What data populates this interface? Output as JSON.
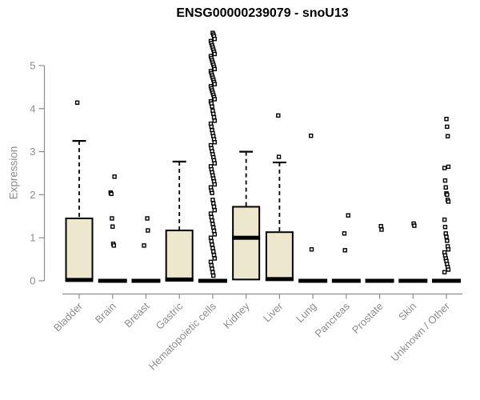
{
  "chart_data": {
    "type": "boxplot",
    "title": "ENSG00000239079 - snoU13",
    "ylabel": "Expression",
    "yticks": [
      0,
      1,
      2,
      3,
      4,
      5
    ],
    "ylim": [
      -0.15,
      5.9
    ],
    "grid": false,
    "legend": false,
    "box_fill": "#ede8cd",
    "box_stroke": "#000000",
    "axis_color": "#8c8c8c",
    "categories": [
      "Bladder",
      "Brain",
      "Breast",
      "Gastric",
      "Hematopoietic cells",
      "Kidney",
      "Liver",
      "Lung",
      "Pancreas",
      "Prostate",
      "Skin",
      "Unknown / Other"
    ],
    "series": [
      {
        "name": "Bladder",
        "q1": 0,
        "median": 0.02,
        "q3": 1.45,
        "whisker_low": 0,
        "whisker_high": 3.25,
        "outliers": [
          4.14
        ]
      },
      {
        "name": "Brain",
        "q1": 0,
        "median": 0,
        "q3": 0,
        "whisker_low": 0,
        "whisker_high": 0,
        "outliers": [
          2.42,
          2.05,
          2.02,
          1.45,
          1.26,
          0.86,
          0.82
        ]
      },
      {
        "name": "Breast",
        "q1": 0,
        "median": 0,
        "q3": 0,
        "whisker_low": 0,
        "whisker_high": 0,
        "outliers": [
          1.45,
          1.17,
          0.82
        ]
      },
      {
        "name": "Gastric",
        "q1": 0,
        "median": 0.03,
        "q3": 1.17,
        "whisker_low": 0,
        "whisker_high": 2.77,
        "outliers": []
      },
      {
        "name": "Hematopoietic cells",
        "q1": 0,
        "median": 0,
        "q3": 0,
        "whisker_low": 0,
        "whisker_high": 0,
        "outliers": [
          5.76,
          5.72,
          5.68,
          5.62,
          5.57,
          5.52,
          5.47,
          5.42,
          5.37,
          5.32,
          5.27,
          5.22,
          5.17,
          5.12,
          5.07,
          5.02,
          4.97,
          4.92,
          4.87,
          4.82,
          4.77,
          4.72,
          4.67,
          4.62,
          4.57,
          4.52,
          4.47,
          4.42,
          4.37,
          4.32,
          4.27,
          4.22,
          4.17,
          4.12,
          4.05,
          3.95,
          3.88,
          3.8,
          3.72,
          3.65,
          3.58,
          3.5,
          3.43,
          3.36,
          3.29,
          3.22,
          3.15,
          3.08,
          3.01,
          2.94,
          2.87,
          2.8,
          2.73,
          2.66,
          2.59,
          2.52,
          2.45,
          2.38,
          2.31,
          2.24,
          2.17,
          2.1,
          2.04,
          1.88,
          1.8,
          1.72,
          1.64,
          1.56,
          1.48,
          1.4,
          1.32,
          1.24,
          1.16,
          1.08,
          1.0,
          0.92,
          0.84,
          0.76,
          0.68,
          0.6,
          0.52,
          0.44,
          0.36,
          0.28,
          0.2,
          0.12
        ]
      },
      {
        "name": "Kidney",
        "q1": 0.03,
        "median": 1.0,
        "q3": 1.72,
        "whisker_low": 0.03,
        "whisker_high": 3.0,
        "outliers": []
      },
      {
        "name": "Liver",
        "q1": 0.02,
        "median": 0.04,
        "q3": 1.13,
        "whisker_low": 0.02,
        "whisker_high": 2.75,
        "outliers": [
          3.84,
          2.88
        ]
      },
      {
        "name": "Lung",
        "q1": 0,
        "median": 0,
        "q3": 0,
        "whisker_low": 0,
        "whisker_high": 0,
        "outliers": [
          3.37,
          0.73
        ]
      },
      {
        "name": "Pancreas",
        "q1": 0,
        "median": 0,
        "q3": 0,
        "whisker_low": 0,
        "whisker_high": 0,
        "outliers": [
          1.52,
          1.1,
          0.71
        ]
      },
      {
        "name": "Prostate",
        "q1": 0,
        "median": 0,
        "q3": 0,
        "whisker_low": 0,
        "whisker_high": 0,
        "outliers": [
          1.27,
          1.19
        ]
      },
      {
        "name": "Skin",
        "q1": 0,
        "median": 0,
        "q3": 0,
        "whisker_low": 0,
        "whisker_high": 0,
        "outliers": [
          1.33,
          1.28
        ]
      },
      {
        "name": "Unknown / Other",
        "q1": 0,
        "median": 0,
        "q3": 0,
        "whisker_low": 0,
        "whisker_high": 0,
        "outliers": [
          3.76,
          3.58,
          3.36,
          2.65,
          2.62,
          2.33,
          2.17,
          2.03,
          2.0,
          1.88,
          1.84,
          1.42,
          1.25,
          1.1,
          1.02,
          0.93,
          0.8,
          0.73,
          0.66,
          0.59,
          0.52,
          0.46,
          0.39,
          0.32,
          0.26,
          0.2
        ]
      }
    ]
  }
}
